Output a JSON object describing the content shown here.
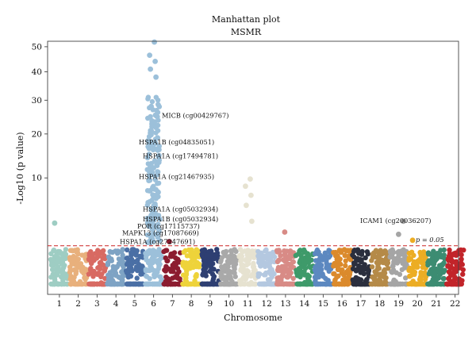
{
  "chart_data": {
    "type": "scatter",
    "title": "Manhattan plot",
    "subtitle": "MSMR",
    "xlabel": "Chromosome",
    "ylabel": "-Log10 (p value)",
    "y_ticks": [
      10,
      20,
      30,
      40,
      50
    ],
    "threshold": {
      "label": "p = 0.05",
      "value": 1.3,
      "color": "#cc2222"
    },
    "categories": [
      "1",
      "2",
      "3",
      "4",
      "5",
      "6",
      "7",
      "8",
      "9",
      "10",
      "11",
      "12",
      "13",
      "14",
      "15",
      "16",
      "17",
      "18",
      "19",
      "20",
      "21",
      "22"
    ],
    "colors": [
      "#9ecdc3",
      "#e8b07c",
      "#d86a62",
      "#7ea3c4",
      "#4a6fa5",
      "#9cc0da",
      "#8c1c30",
      "#eed33a",
      "#2e3f72",
      "#a9a9a9",
      "#e6e2d0",
      "#b4c8e0",
      "#d88b86",
      "#3e9a6a",
      "#5c88c0",
      "#db8a2c",
      "#2b2f3e",
      "#b58a48",
      "#a5a5a5",
      "#ecad24",
      "#3c8c72",
      "#c2242a"
    ],
    "top_hits": [
      {
        "chromosome": "1",
        "value": 3.3
      },
      {
        "chromosome": "6",
        "value": 52.0
      },
      {
        "chromosome": "6",
        "value": 46.5
      },
      {
        "chromosome": "6",
        "value": 44.0
      },
      {
        "chromosome": "6",
        "value": 41.0
      },
      {
        "chromosome": "6",
        "value": 38.0
      },
      {
        "chromosome": "6",
        "value": 28.0
      },
      {
        "chromosome": "6",
        "value": 25.0
      },
      {
        "chromosome": "6",
        "value": 22.0
      },
      {
        "chromosome": "6",
        "value": 19.0
      },
      {
        "chromosome": "6",
        "value": 17.0
      },
      {
        "chromosome": "6",
        "value": 14.5
      },
      {
        "chromosome": "6",
        "value": 12.0
      },
      {
        "chromosome": "6",
        "value": 9.5
      },
      {
        "chromosome": "6",
        "value": 8.0
      },
      {
        "chromosome": "6",
        "value": 6.0
      },
      {
        "chromosome": "6",
        "value": 4.0
      },
      {
        "chromosome": "7",
        "value": 1.6
      },
      {
        "chromosome": "11",
        "value": 9.8
      },
      {
        "chromosome": "11",
        "value": 8.5
      },
      {
        "chromosome": "11",
        "value": 7.0
      },
      {
        "chromosome": "11",
        "value": 5.5
      },
      {
        "chromosome": "11",
        "value": 3.5
      },
      {
        "chromosome": "13",
        "value": 2.4
      },
      {
        "chromosome": "19",
        "value": 3.5
      },
      {
        "chromosome": "19",
        "value": 2.2
      },
      {
        "chromosome": "20",
        "value": 1.7
      }
    ],
    "annotations": [
      {
        "text": "MICB (cg00429767)",
        "value": 24.5
      },
      {
        "text": "HSPA1B (cg04835051)",
        "value": 17.3
      },
      {
        "text": "HSPA1A (cg17494781)",
        "value": 14.0
      },
      {
        "text": "HSPA1A (cg21467935)",
        "value": 9.8
      },
      {
        "text": "HSPA1A (cg05032934)",
        "value": 4.7
      },
      {
        "text": "HSPA1B (cg05032934)",
        "value": 3.5
      },
      {
        "text": "POR (cg17115737)",
        "value": 2.75
      },
      {
        "text": "MAPK13 (cg17087669)",
        "value": 2.1
      },
      {
        "text": "HSPA1A (cg27247691)",
        "value": 1.42
      },
      {
        "text": "ICAM1 (cg20036207)",
        "value": 3.3
      }
    ]
  }
}
